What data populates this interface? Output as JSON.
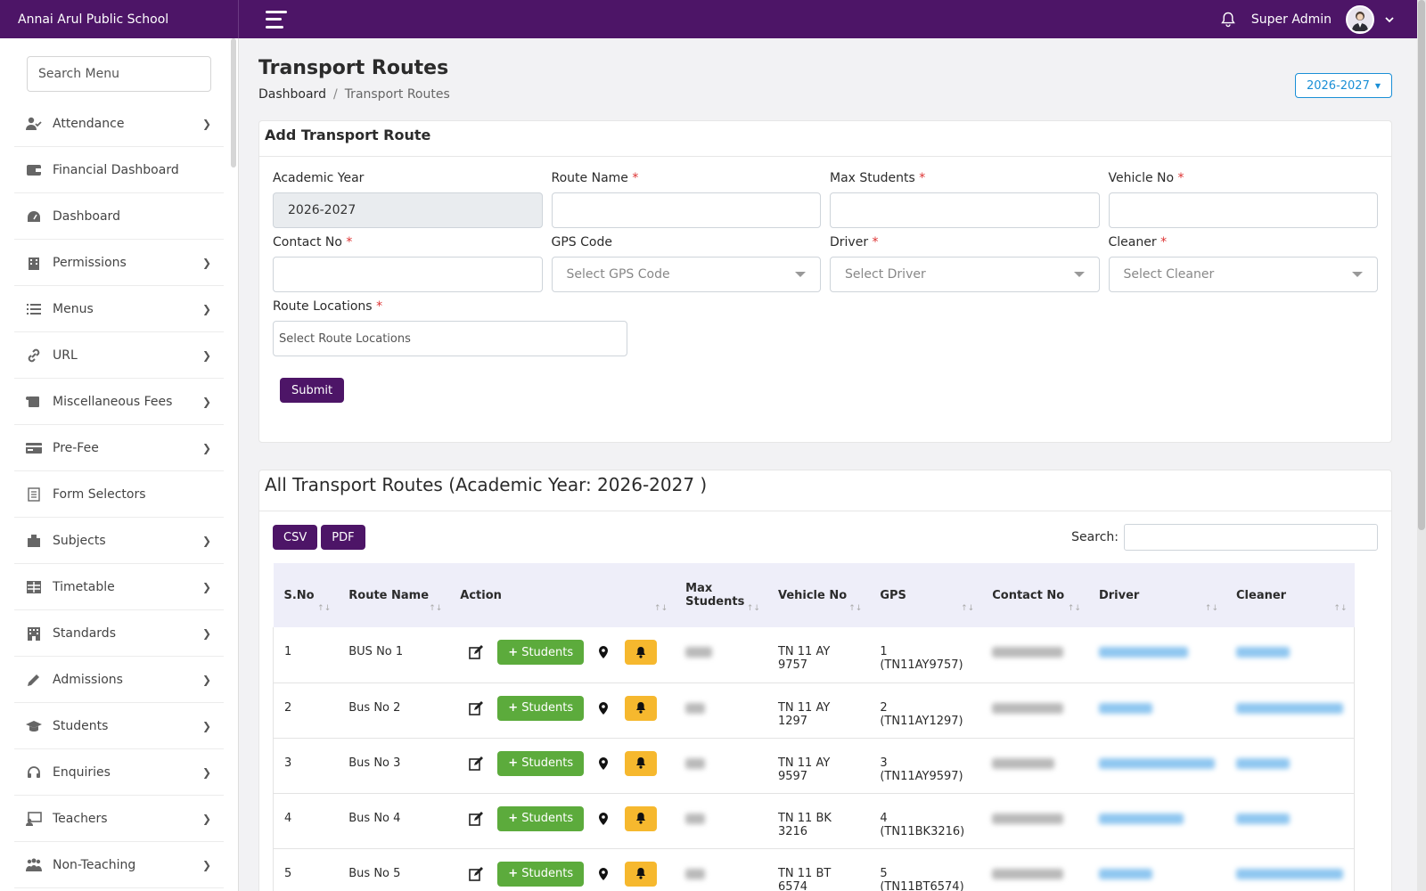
{
  "header": {
    "brand": "Annai Arul Public School",
    "user_name": "Super Admin"
  },
  "sidebar": {
    "search_placeholder": "Search Menu",
    "items": [
      {
        "label": "Attendance",
        "icon": "user-check-icon",
        "has_children": true
      },
      {
        "label": "Financial Dashboard",
        "icon": "wallet-icon",
        "has_children": false
      },
      {
        "label": "Dashboard",
        "icon": "gauge-icon",
        "has_children": false
      },
      {
        "label": "Permissions",
        "icon": "building-icon",
        "has_children": true
      },
      {
        "label": "Menus",
        "icon": "list-icon",
        "has_children": true
      },
      {
        "label": "URL",
        "icon": "link-icon",
        "has_children": true
      },
      {
        "label": "Miscellaneous Fees",
        "icon": "scroll-icon",
        "has_children": true
      },
      {
        "label": "Pre-Fee",
        "icon": "credit-card-icon",
        "has_children": true
      },
      {
        "label": "Form Selectors",
        "icon": "form-icon",
        "has_children": false
      },
      {
        "label": "Subjects",
        "icon": "book-icon",
        "has_children": true
      },
      {
        "label": "Timetable",
        "icon": "table-icon",
        "has_children": true
      },
      {
        "label": "Standards",
        "icon": "building-grid-icon",
        "has_children": true
      },
      {
        "label": "Admissions",
        "icon": "pencil-icon",
        "has_children": true
      },
      {
        "label": "Students",
        "icon": "graduation-cap-icon",
        "has_children": true
      },
      {
        "label": "Enquiries",
        "icon": "headset-icon",
        "has_children": true
      },
      {
        "label": "Teachers",
        "icon": "chalkboard-icon",
        "has_children": true
      },
      {
        "label": "Non-Teaching",
        "icon": "users-icon",
        "has_children": true
      }
    ]
  },
  "page": {
    "title": "Transport Routes",
    "breadcrumb": [
      "Dashboard",
      "/",
      "Transport Routes"
    ],
    "year_selector": "2026-2027"
  },
  "form": {
    "title": "Add Transport Route",
    "fields": {
      "academic_year": {
        "label": "Academic Year",
        "value": "2026-2027",
        "required": false
      },
      "route_name": {
        "label": "Route Name",
        "value": "",
        "required": true
      },
      "max_students": {
        "label": "Max Students",
        "value": "",
        "required": true
      },
      "vehicle_no": {
        "label": "Vehicle No",
        "value": "",
        "required": true
      },
      "contact_no": {
        "label": "Contact No",
        "value": "",
        "required": true
      },
      "gps_code": {
        "label": "GPS Code",
        "placeholder": "Select GPS Code",
        "required": false
      },
      "driver": {
        "label": "Driver",
        "placeholder": "Select Driver",
        "required": true
      },
      "cleaner": {
        "label": "Cleaner",
        "placeholder": "Select Cleaner",
        "required": true
      },
      "route_locations": {
        "label": "Route Locations",
        "placeholder": "Select Route Locations",
        "required": true
      }
    },
    "required_mark": "*",
    "submit_label": "Submit"
  },
  "list": {
    "title": "All Transport Routes (Academic Year: 2026-2027 )",
    "export_buttons": [
      "CSV",
      "PDF"
    ],
    "search_label": "Search:",
    "columns": [
      "S.No",
      "Route Name",
      "Action",
      "Max Students",
      "Vehicle No",
      "GPS",
      "Contact No",
      "Driver",
      "Cleaner"
    ],
    "students_button": "Students",
    "rows": [
      {
        "sno": "1",
        "route": "BUS No 1",
        "vehicle": "TN 11 AY 9757",
        "gps": "1 (TN11AY9757)"
      },
      {
        "sno": "2",
        "route": "Bus No 2",
        "vehicle": "TN 11 AY 1297",
        "gps": "2 (TN11AY1297)"
      },
      {
        "sno": "3",
        "route": "Bus No 3",
        "vehicle": "TN 11 AY 9597",
        "gps": "3 (TN11AY9597)"
      },
      {
        "sno": "4",
        "route": "Bus No 4",
        "vehicle": "TN 11 BK 3216",
        "gps": "4 (TN11BK3216)"
      },
      {
        "sno": "5",
        "route": "Bus No 5",
        "vehicle": "TN 11 BT 6574",
        "gps": "5 (TN11BT6574)"
      }
    ]
  },
  "colors": {
    "primary": "#4d1567",
    "success": "#5cab3c",
    "warning": "#f6b82e",
    "info": "#1a8fd6"
  }
}
